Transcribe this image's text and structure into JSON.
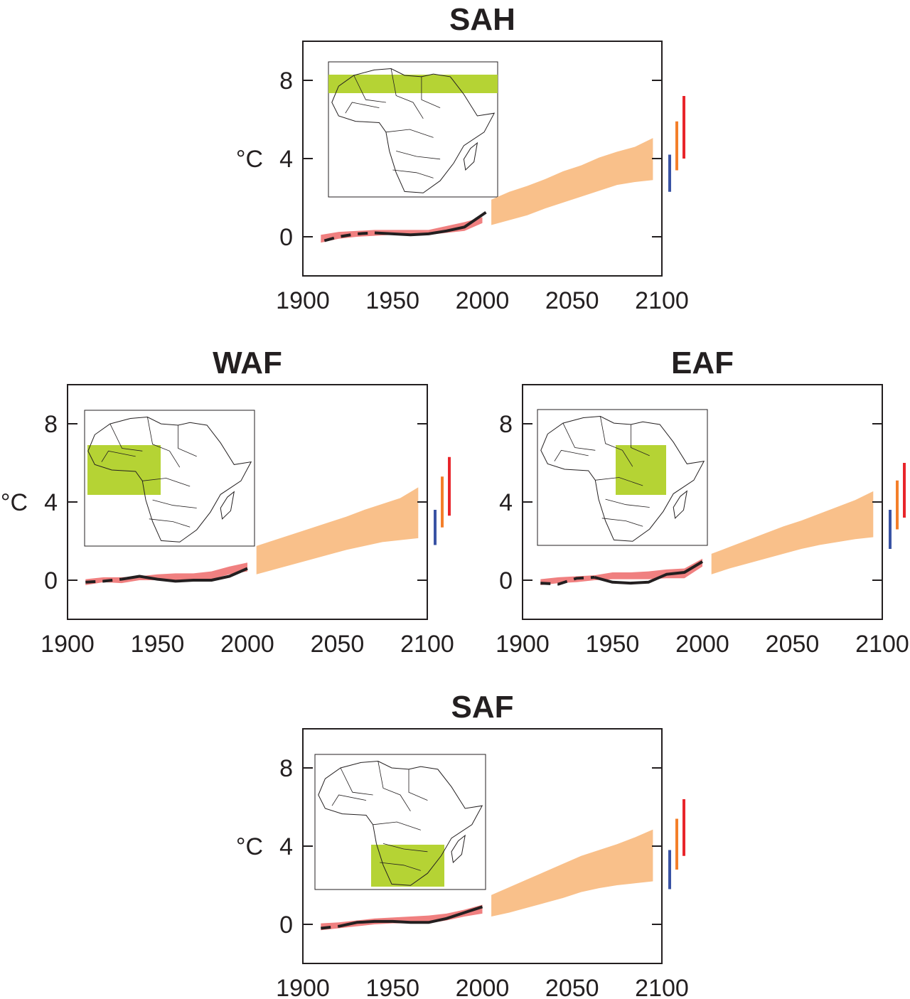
{
  "figure": {
    "colors": {
      "observed_band": "#f08080",
      "projection_band": "#f9c08a",
      "observed_line": "#231f20",
      "inset_region": "#b5d334",
      "bar_low": "#3953a4",
      "bar_mid": "#f47f2a",
      "bar_high": "#e8252b"
    }
  },
  "chart_data": [
    {
      "type": "line",
      "title": "SAH",
      "ylabel": "°C",
      "xlim": [
        1900,
        2100
      ],
      "ylim": [
        -2,
        10
      ],
      "xticks": [
        "1900",
        "1950",
        "2000",
        "2050",
        "2100"
      ],
      "yticks": [
        "0",
        "4",
        "8"
      ],
      "grid": false,
      "inset_map": "africa-region-sahara-north-africa",
      "observed_band": {
        "x": [
          1910,
          1920,
          1930,
          1940,
          1950,
          1960,
          1970,
          1980,
          1990,
          2000
        ],
        "lower": [
          -0.3,
          -0.1,
          0.0,
          0.05,
          0.1,
          0.1,
          0.1,
          0.2,
          0.3,
          0.7
        ],
        "upper": [
          0.1,
          0.25,
          0.3,
          0.35,
          0.35,
          0.35,
          0.35,
          0.55,
          0.75,
          1.0
        ]
      },
      "observed_line": {
        "x": [
          1912,
          1920,
          1930,
          1940,
          1950,
          1960,
          1970,
          1980,
          1990,
          2002
        ],
        "y": [
          -0.2,
          0.0,
          0.15,
          0.2,
          0.15,
          0.1,
          0.15,
          0.3,
          0.5,
          1.25
        ],
        "dashed_until": 1945
      },
      "projection_band": {
        "x": [
          2005,
          2015,
          2025,
          2035,
          2045,
          2055,
          2065,
          2075,
          2085,
          2095
        ],
        "lower": [
          0.6,
          0.85,
          1.1,
          1.45,
          1.75,
          2.05,
          2.35,
          2.65,
          2.8,
          2.9
        ],
        "upper": [
          1.9,
          2.3,
          2.6,
          2.95,
          3.35,
          3.65,
          4.05,
          4.35,
          4.6,
          5.05
        ]
      },
      "scenario_bars": [
        [
          2.3,
          4.2
        ],
        [
          3.4,
          5.9
        ],
        [
          4.0,
          7.2
        ]
      ]
    },
    {
      "type": "line",
      "title": "WAF",
      "ylabel": "°C",
      "xlim": [
        1900,
        2100
      ],
      "ylim": [
        -2,
        10
      ],
      "xticks": [
        "1900",
        "1950",
        "2000",
        "2050",
        "2100"
      ],
      "yticks": [
        "0",
        "4",
        "8"
      ],
      "grid": false,
      "inset_map": "africa-region-west-africa",
      "observed_band": {
        "x": [
          1910,
          1920,
          1930,
          1940,
          1950,
          1960,
          1970,
          1980,
          1990,
          2000
        ],
        "lower": [
          -0.25,
          -0.1,
          -0.15,
          0.0,
          0.0,
          -0.05,
          0.0,
          0.05,
          0.3,
          0.45
        ],
        "upper": [
          0.05,
          0.15,
          0.15,
          0.2,
          0.3,
          0.35,
          0.35,
          0.45,
          0.7,
          0.9
        ]
      },
      "observed_line": {
        "x": [
          1910,
          1920,
          1930,
          1940,
          1950,
          1960,
          1970,
          1980,
          1990,
          2000
        ],
        "y": [
          -0.1,
          -0.05,
          0.05,
          0.2,
          0.05,
          -0.05,
          0.0,
          0.0,
          0.2,
          0.6
        ],
        "dashed_until": 1935
      },
      "projection_band": {
        "x": [
          2005,
          2015,
          2025,
          2035,
          2045,
          2055,
          2065,
          2075,
          2085,
          2095
        ],
        "lower": [
          0.3,
          0.55,
          0.8,
          1.05,
          1.3,
          1.55,
          1.75,
          1.95,
          2.05,
          2.15
        ],
        "upper": [
          1.75,
          2.05,
          2.35,
          2.65,
          2.95,
          3.25,
          3.6,
          3.9,
          4.2,
          4.75
        ]
      },
      "scenario_bars": [
        [
          1.8,
          3.6
        ],
        [
          2.7,
          5.3
        ],
        [
          3.3,
          6.3
        ]
      ]
    },
    {
      "type": "line",
      "title": "EAF",
      "ylabel": "",
      "xlim": [
        1900,
        2100
      ],
      "ylim": [
        -2,
        10
      ],
      "xticks": [
        "1900",
        "1950",
        "2000",
        "2050",
        "2100"
      ],
      "yticks": [
        "0",
        "4",
        "8"
      ],
      "grid": false,
      "inset_map": "africa-region-east-africa",
      "observed_band": {
        "x": [
          1910,
          1920,
          1930,
          1940,
          1950,
          1960,
          1970,
          1980,
          1990,
          2000
        ],
        "lower": [
          -0.25,
          -0.15,
          -0.1,
          0.0,
          0.05,
          0.05,
          0.05,
          0.1,
          0.1,
          0.7
        ],
        "upper": [
          0.05,
          0.15,
          0.2,
          0.25,
          0.4,
          0.4,
          0.45,
          0.55,
          0.6,
          1.1
        ]
      },
      "observed_line": {
        "x": [
          1910,
          1920,
          1930,
          1940,
          1950,
          1960,
          1970,
          1980,
          1990,
          2000
        ],
        "y": [
          -0.15,
          -0.2,
          0.1,
          0.15,
          -0.1,
          -0.15,
          -0.1,
          0.3,
          0.4,
          0.95
        ],
        "dashed_until": 1945
      },
      "projection_band": {
        "x": [
          2005,
          2015,
          2025,
          2035,
          2045,
          2055,
          2065,
          2075,
          2085,
          2095
        ],
        "lower": [
          0.3,
          0.6,
          0.85,
          1.1,
          1.35,
          1.6,
          1.8,
          1.95,
          2.1,
          2.2
        ],
        "upper": [
          1.35,
          1.7,
          2.05,
          2.4,
          2.75,
          3.05,
          3.4,
          3.75,
          4.1,
          4.55
        ]
      },
      "scenario_bars": [
        [
          1.6,
          3.6
        ],
        [
          2.6,
          5.1
        ],
        [
          3.2,
          6.0
        ]
      ]
    },
    {
      "type": "line",
      "title": "SAF",
      "ylabel": "°C",
      "xlim": [
        1900,
        2100
      ],
      "ylim": [
        -2,
        10
      ],
      "xticks": [
        "1900",
        "1950",
        "2000",
        "2050",
        "2100"
      ],
      "yticks": [
        "0",
        "4",
        "8"
      ],
      "grid": false,
      "inset_map": "africa-region-southern-africa",
      "observed_band": {
        "x": [
          1910,
          1920,
          1930,
          1940,
          1950,
          1960,
          1970,
          1980,
          1990,
          2000
        ],
        "lower": [
          -0.3,
          -0.2,
          -0.1,
          0.0,
          0.05,
          0.05,
          0.05,
          0.2,
          0.4,
          0.55
        ],
        "upper": [
          0.05,
          0.1,
          0.2,
          0.3,
          0.35,
          0.4,
          0.45,
          0.55,
          0.75,
          1.0
        ]
      },
      "observed_line": {
        "x": [
          1910,
          1920,
          1930,
          1940,
          1950,
          1960,
          1970,
          1980,
          1990,
          2000
        ],
        "y": [
          -0.2,
          -0.1,
          0.1,
          0.15,
          0.15,
          0.1,
          0.1,
          0.3,
          0.6,
          0.9
        ],
        "dashed_until": 1925
      },
      "projection_band": {
        "x": [
          2005,
          2015,
          2025,
          2035,
          2045,
          2055,
          2065,
          2075,
          2085,
          2095
        ],
        "lower": [
          0.4,
          0.6,
          0.85,
          1.1,
          1.35,
          1.65,
          1.85,
          2.0,
          2.1,
          2.2
        ],
        "upper": [
          1.5,
          1.9,
          2.3,
          2.7,
          3.1,
          3.5,
          3.8,
          4.1,
          4.45,
          4.85
        ]
      },
      "scenario_bars": [
        [
          1.8,
          3.8
        ],
        [
          2.8,
          5.4
        ],
        [
          3.5,
          6.4
        ]
      ]
    }
  ]
}
